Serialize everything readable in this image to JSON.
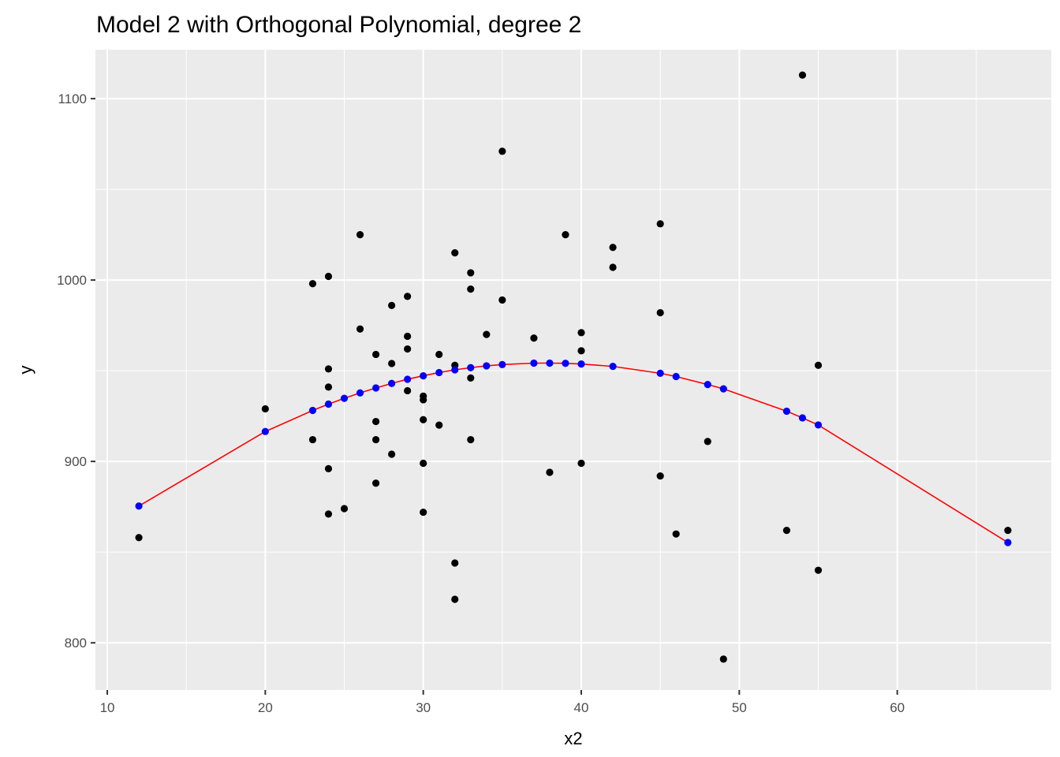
{
  "chart_data": {
    "type": "scatter",
    "title": "Model 2 with Orthogonal Polynomial, degree 2",
    "xlabel": "x2",
    "ylabel": "y",
    "xlim": [
      9.25,
      69.75
    ],
    "ylim": [
      774,
      1127
    ],
    "x_ticks": [
      10,
      20,
      30,
      40,
      50,
      60
    ],
    "y_ticks": [
      800,
      900,
      1000,
      1100
    ],
    "x_minor_ticks": [
      15,
      25,
      35,
      45,
      55,
      65
    ],
    "y_minor_ticks": [
      850,
      950,
      1050
    ],
    "grid": true,
    "legend": "none",
    "colors": {
      "panel": "#ebebeb",
      "grid": "#ffffff",
      "observed": "#000000",
      "fitted_line": "#ff0000",
      "fitted_points": "#0000ff"
    },
    "series": [
      {
        "kind": "observed-points",
        "points": [
          [
            12,
            858
          ],
          [
            20,
            929
          ],
          [
            23,
            998
          ],
          [
            23,
            912
          ],
          [
            24,
            1002
          ],
          [
            24,
            951
          ],
          [
            24,
            941
          ],
          [
            24,
            896
          ],
          [
            24,
            871
          ],
          [
            25,
            874
          ],
          [
            26,
            1025
          ],
          [
            26,
            973
          ],
          [
            27,
            959
          ],
          [
            27,
            922
          ],
          [
            27,
            912
          ],
          [
            27,
            888
          ],
          [
            28,
            986
          ],
          [
            28,
            954
          ],
          [
            28,
            904
          ],
          [
            29,
            991
          ],
          [
            29,
            969
          ],
          [
            29,
            962
          ],
          [
            29,
            939
          ],
          [
            30,
            936
          ],
          [
            30,
            934
          ],
          [
            30,
            923
          ],
          [
            30,
            899
          ],
          [
            30,
            872
          ],
          [
            31,
            959
          ],
          [
            31,
            920
          ],
          [
            32,
            1015
          ],
          [
            32,
            953
          ],
          [
            32,
            844
          ],
          [
            32,
            824
          ],
          [
            33,
            1004
          ],
          [
            33,
            995
          ],
          [
            33,
            946
          ],
          [
            33,
            912
          ],
          [
            34,
            970
          ],
          [
            35,
            1071
          ],
          [
            35,
            989
          ],
          [
            37,
            968
          ],
          [
            38,
            894
          ],
          [
            39,
            1025
          ],
          [
            40,
            971
          ],
          [
            40,
            961
          ],
          [
            40,
            899
          ],
          [
            42,
            1018
          ],
          [
            42,
            1007
          ],
          [
            45,
            1031
          ],
          [
            45,
            982
          ],
          [
            45,
            892
          ],
          [
            46,
            860
          ],
          [
            48,
            911
          ],
          [
            49,
            791
          ],
          [
            53,
            862
          ],
          [
            54,
            1113
          ],
          [
            55,
            953
          ],
          [
            55,
            840
          ],
          [
            67,
            862
          ]
        ]
      },
      {
        "kind": "fitted-line-and-points",
        "points": [
          [
            12,
            875.4
          ],
          [
            20,
            916.5
          ],
          [
            23,
            928.1
          ],
          [
            24,
            931.6
          ],
          [
            25,
            934.8
          ],
          [
            26,
            937.8
          ],
          [
            27,
            940.5
          ],
          [
            28,
            943
          ],
          [
            29,
            945.3
          ],
          [
            30,
            947.2
          ],
          [
            31,
            949
          ],
          [
            32,
            950.5
          ],
          [
            33,
            951.7
          ],
          [
            34,
            952.7
          ],
          [
            35,
            953.4
          ],
          [
            37,
            954.2
          ],
          [
            38,
            954.2
          ],
          [
            39,
            954.1
          ],
          [
            40,
            953.7
          ],
          [
            42,
            952.4
          ],
          [
            45,
            948.6
          ],
          [
            46,
            946.8
          ],
          [
            48,
            942.4
          ],
          [
            49,
            940
          ],
          [
            53,
            927.7
          ],
          [
            54,
            924
          ],
          [
            55,
            920.1
          ],
          [
            67,
            855.3
          ]
        ]
      }
    ]
  }
}
